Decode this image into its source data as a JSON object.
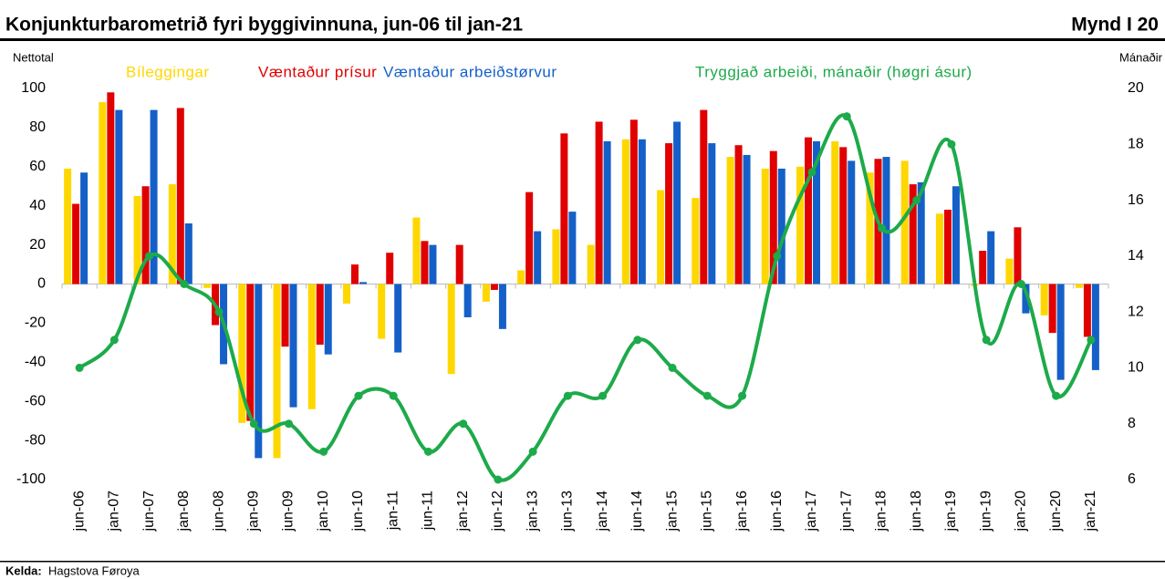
{
  "chart_data": {
    "type": "bar_line",
    "title": "Konjunkturbarometrið fyri byggivinnuna, jun-06 til jan-21",
    "figure_label": "Mynd I 20",
    "y_axis_label": "Nettotal",
    "y2_axis_label": "Mánaðir",
    "source_label": "Kelda:",
    "source": "Hagstova Føroya",
    "categories": [
      "jun-06",
      "jan-07",
      "jun-07",
      "jan-08",
      "jun-08",
      "jan-09",
      "jun-09",
      "jan-10",
      "jun-10",
      "jan-11",
      "jun-11",
      "jan-12",
      "jun-12",
      "jan-13",
      "jun-13",
      "jan-14",
      "jun-14",
      "jan-15",
      "jun-15",
      "jan-16",
      "jun-16",
      "jan-17",
      "jun-17",
      "jan-18",
      "jun-18",
      "jan-19",
      "jun-19",
      "jan-20",
      "jun-20",
      "jan-21"
    ],
    "series": [
      {
        "name": "Bíleggingar",
        "color": "#FFD700",
        "values": [
          59,
          93,
          45,
          51,
          -2,
          -71,
          -89,
          -64,
          -10,
          -28,
          34,
          -46,
          -9,
          7,
          28,
          20,
          74,
          48,
          44,
          65,
          59,
          60,
          73,
          57,
          63,
          36,
          -1,
          13,
          -16,
          -2
        ]
      },
      {
        "name": "Væntaður prísur",
        "color": "#E00000",
        "values": [
          41,
          98,
          50,
          90,
          -21,
          -70,
          -32,
          -31,
          10,
          16,
          22,
          20,
          -3,
          47,
          77,
          83,
          84,
          72,
          89,
          71,
          68,
          75,
          70,
          64,
          51,
          38,
          17,
          29,
          -25,
          -27
        ]
      },
      {
        "name": "Væntaður arbeiðstørvur",
        "color": "#1560C8",
        "values": [
          57,
          89,
          89,
          31,
          -41,
          -89,
          -63,
          -36,
          1,
          -35,
          20,
          -17,
          -23,
          27,
          37,
          73,
          74,
          83,
          72,
          66,
          59,
          73,
          63,
          65,
          52,
          50,
          27,
          -15,
          -49,
          -44
        ]
      },
      {
        "name": "Tryggjað arbeiði, mánaðir (høgri ásur)",
        "color": "#1DAA4A",
        "axis": "y2",
        "type": "line",
        "values": [
          10,
          11,
          14,
          13,
          12,
          8,
          8,
          7,
          9,
          9,
          7,
          8,
          6,
          7,
          9,
          9,
          11,
          10,
          9,
          9,
          14,
          17,
          19,
          15,
          16,
          18,
          11,
          13,
          9,
          11
        ]
      }
    ],
    "ylim": [
      -100,
      100
    ],
    "yticks": [
      -100,
      -80,
      -60,
      -40,
      -20,
      0,
      20,
      40,
      60,
      80,
      100
    ],
    "y2lim": [
      6,
      20
    ],
    "y2ticks": [
      6,
      8,
      10,
      12,
      14,
      16,
      18,
      20
    ]
  }
}
